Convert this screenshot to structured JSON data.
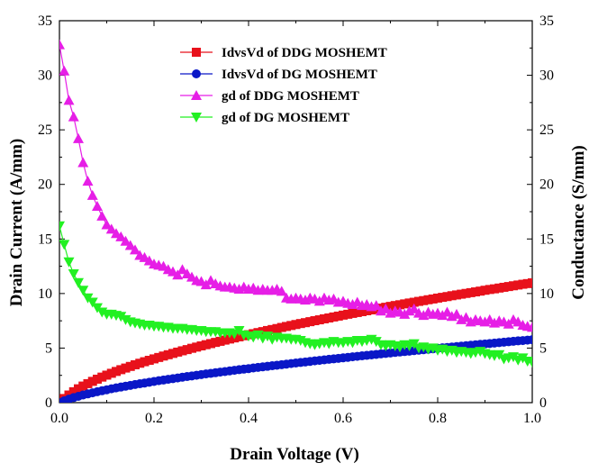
{
  "chart_data": {
    "type": "line",
    "title": "",
    "xlabel": "Drain Voltage (V)",
    "ylabel_left": "Drain Current (A/mm)",
    "ylabel_right": "Conductance (S/mm)",
    "xlim": [
      0,
      1.0
    ],
    "ylim_left": [
      0,
      35
    ],
    "ylim_right": [
      0,
      35
    ],
    "x_ticks": [
      0,
      0.2,
      0.4,
      0.6,
      0.8,
      1.0
    ],
    "x_tick_labels": [
      "0.0",
      "0.2",
      "0.4",
      "0.6",
      "0.8",
      "1.0"
    ],
    "y_ticks": [
      0,
      5,
      10,
      15,
      20,
      25,
      30,
      35
    ],
    "y_tick_labels": [
      "0",
      "5",
      "10",
      "15",
      "20",
      "25",
      "30",
      "35"
    ],
    "grid": false,
    "legend_position": "top-center",
    "x": [
      0.0,
      0.01,
      0.02,
      0.03,
      0.04,
      0.05,
      0.06,
      0.07,
      0.08,
      0.09,
      0.1,
      0.11,
      0.12,
      0.13,
      0.14,
      0.15,
      0.16,
      0.17,
      0.18,
      0.19,
      0.2,
      0.21,
      0.22,
      0.23,
      0.24,
      0.25,
      0.26,
      0.27,
      0.28,
      0.29,
      0.3,
      0.31,
      0.32,
      0.33,
      0.34,
      0.35,
      0.36,
      0.37,
      0.38,
      0.39,
      0.4,
      0.41,
      0.42,
      0.43,
      0.44,
      0.45,
      0.46,
      0.47,
      0.48,
      0.49,
      0.5,
      0.51,
      0.52,
      0.53,
      0.54,
      0.55,
      0.56,
      0.57,
      0.58,
      0.59,
      0.6,
      0.61,
      0.62,
      0.63,
      0.64,
      0.65,
      0.66,
      0.67,
      0.68,
      0.69,
      0.7,
      0.71,
      0.72,
      0.73,
      0.74,
      0.75,
      0.76,
      0.77,
      0.78,
      0.79,
      0.8,
      0.81,
      0.82,
      0.83,
      0.84,
      0.85,
      0.86,
      0.87,
      0.88,
      0.89,
      0.9,
      0.91,
      0.92,
      0.93,
      0.94,
      0.95,
      0.96,
      0.97,
      0.98,
      0.99,
      1.0
    ],
    "series": [
      {
        "name": "IdvsVd of DDG MOSHEMT",
        "axis": "left",
        "marker": "square",
        "color": "#e8111b",
        "values": [
          0.0,
          0.38,
          0.7,
          1.0,
          1.27,
          1.52,
          1.74,
          1.95,
          2.15,
          2.34,
          2.52,
          2.69,
          2.86,
          3.02,
          3.17,
          3.32,
          3.47,
          3.61,
          3.75,
          3.88,
          4.01,
          4.14,
          4.27,
          4.39,
          4.51,
          4.63,
          4.75,
          4.86,
          4.98,
          5.09,
          5.2,
          5.31,
          5.41,
          5.52,
          5.62,
          5.73,
          5.83,
          5.93,
          6.03,
          6.13,
          6.23,
          6.32,
          6.42,
          6.51,
          6.61,
          6.7,
          6.79,
          6.89,
          6.98,
          7.07,
          7.16,
          7.25,
          7.33,
          7.42,
          7.51,
          7.59,
          7.68,
          7.76,
          7.85,
          7.93,
          8.02,
          8.1,
          8.18,
          8.26,
          8.34,
          8.42,
          8.5,
          8.58,
          8.66,
          8.74,
          8.82,
          8.9,
          8.97,
          9.05,
          9.13,
          9.2,
          9.28,
          9.35,
          9.43,
          9.5,
          9.58,
          9.65,
          9.72,
          9.8,
          9.87,
          9.94,
          10.01,
          10.08,
          10.15,
          10.22,
          10.3,
          10.37,
          10.43,
          10.5,
          10.57,
          10.64,
          10.71,
          10.78,
          10.85,
          10.91,
          10.98
        ]
      },
      {
        "name": "IdvsVd of DG MOSHEMT",
        "axis": "left",
        "marker": "circle",
        "color": "#0a17c7",
        "values": [
          0.0,
          0.17,
          0.32,
          0.46,
          0.58,
          0.7,
          0.8,
          0.9,
          1.0,
          1.09,
          1.18,
          1.27,
          1.35,
          1.43,
          1.51,
          1.58,
          1.66,
          1.73,
          1.8,
          1.87,
          1.94,
          2.01,
          2.07,
          2.14,
          2.2,
          2.26,
          2.33,
          2.39,
          2.45,
          2.51,
          2.57,
          2.63,
          2.68,
          2.74,
          2.8,
          2.85,
          2.91,
          2.96,
          3.02,
          3.07,
          3.12,
          3.18,
          3.23,
          3.28,
          3.33,
          3.38,
          3.43,
          3.48,
          3.53,
          3.58,
          3.63,
          3.68,
          3.73,
          3.78,
          3.83,
          3.87,
          3.92,
          3.97,
          4.01,
          4.06,
          4.11,
          4.15,
          4.2,
          4.24,
          4.29,
          4.33,
          4.38,
          4.42,
          4.47,
          4.51,
          4.55,
          4.6,
          4.64,
          4.68,
          4.72,
          4.77,
          4.81,
          4.85,
          4.89,
          4.93,
          4.98,
          5.02,
          5.06,
          5.1,
          5.14,
          5.18,
          5.22,
          5.26,
          5.3,
          5.34,
          5.38,
          5.42,
          5.46,
          5.5,
          5.54,
          5.58,
          5.62,
          5.66,
          5.69,
          5.73,
          5.77
        ]
      },
      {
        "name": "gd of DDG MOSHEMT",
        "axis": "right",
        "marker": "triangle-up",
        "color": "#e61ee6",
        "values": [
          32.8,
          30.4,
          27.7,
          26.2,
          24.2,
          22.0,
          20.3,
          19.0,
          18.0,
          17.1,
          16.3,
          15.9,
          15.5,
          15.2,
          14.8,
          14.4,
          14.0,
          13.5,
          13.3,
          13.0,
          12.7,
          12.6,
          12.5,
          12.2,
          12.0,
          11.7,
          12.2,
          11.8,
          11.5,
          11.2,
          11.1,
          10.8,
          11.2,
          10.9,
          10.7,
          10.6,
          10.6,
          10.5,
          10.4,
          10.6,
          10.4,
          10.5,
          10.3,
          10.4,
          10.3,
          10.3,
          10.4,
          10.2,
          9.6,
          9.5,
          9.6,
          9.5,
          9.4,
          9.6,
          9.5,
          9.3,
          9.6,
          9.4,
          9.5,
          9.2,
          9.3,
          9.1,
          9.0,
          9.2,
          8.9,
          9.0,
          8.8,
          8.9,
          8.4,
          8.6,
          8.2,
          8.4,
          8.3,
          8.1,
          8.4,
          8.6,
          8.2,
          8.0,
          8.3,
          8.1,
          8.2,
          8.0,
          8.3,
          7.9,
          8.1,
          7.6,
          7.8,
          7.4,
          7.6,
          7.5,
          7.4,
          7.6,
          7.3,
          7.5,
          7.4,
          7.2,
          7.6,
          7.4,
          7.1,
          7.0,
          6.9
        ]
      },
      {
        "name": "gd of DG MOSHEMT",
        "axis": "right",
        "marker": "triangle-down",
        "color": "#22f022",
        "values": [
          16.2,
          14.5,
          12.9,
          11.8,
          11.0,
          10.3,
          9.6,
          9.2,
          8.7,
          8.3,
          8.1,
          8.1,
          8.0,
          7.9,
          7.6,
          7.4,
          7.3,
          7.2,
          7.1,
          7.1,
          7.0,
          7.0,
          6.9,
          6.9,
          6.8,
          6.8,
          6.8,
          6.7,
          6.7,
          6.6,
          6.6,
          6.5,
          6.5,
          6.5,
          6.4,
          6.4,
          6.4,
          6.3,
          6.6,
          6.2,
          6.1,
          6.0,
          6.2,
          5.9,
          6.1,
          5.8,
          6.0,
          5.9,
          5.9,
          5.8,
          5.8,
          5.7,
          5.5,
          5.4,
          5.3,
          5.4,
          5.5,
          5.4,
          5.6,
          5.5,
          5.5,
          5.6,
          5.5,
          5.7,
          5.6,
          5.7,
          5.8,
          5.6,
          5.3,
          5.2,
          5.3,
          5.2,
          5.1,
          5.3,
          5.2,
          5.4,
          5.0,
          5.1,
          4.9,
          5.0,
          4.8,
          4.9,
          4.7,
          4.8,
          4.6,
          4.7,
          4.6,
          4.5,
          4.6,
          4.7,
          4.5,
          4.4,
          4.3,
          4.4,
          4.0,
          4.1,
          4.2,
          3.9,
          4.1,
          3.8,
          3.7
        ]
      }
    ]
  }
}
